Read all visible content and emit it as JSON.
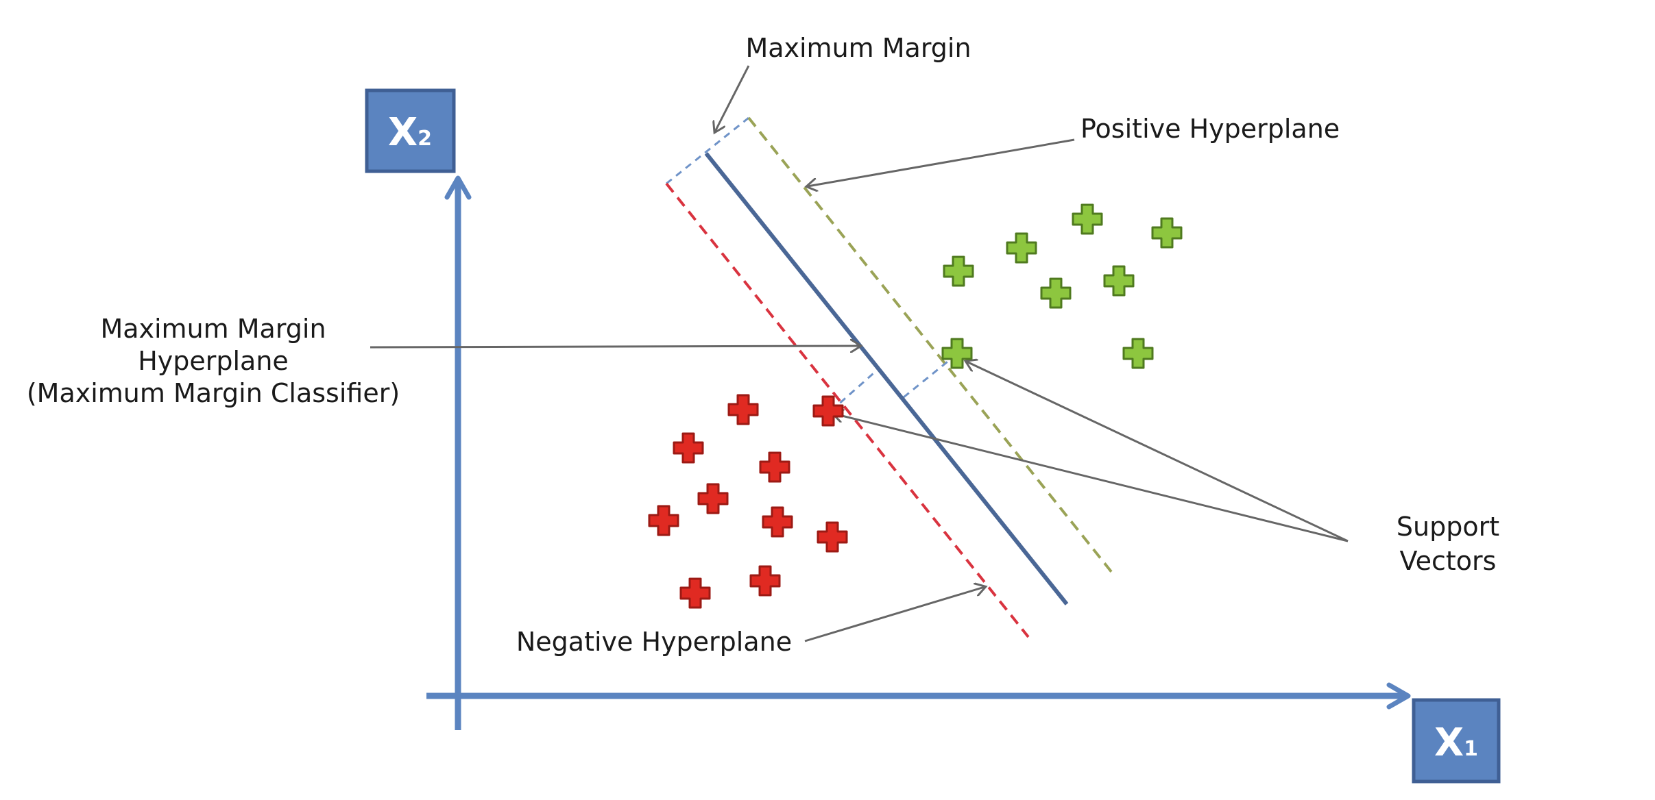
{
  "labels": {
    "maximum_margin": "Maximum Margin",
    "positive_hyperplane": "Positive Hyperplane",
    "mmh_line1": "Maximum Margin",
    "mmh_line2": "Hyperplane",
    "mmh_line3": "(Maximum Margin Classifier)",
    "support_line1": "Support",
    "support_line2": "Vectors",
    "negative_hyperplane": "Negative Hyperplane"
  },
  "axes": {
    "x_symbol": "X",
    "x_subscript": "1",
    "y_symbol": "X",
    "y_subscript": "2"
  },
  "colors": {
    "axis": "#5b84c0",
    "axis_box_fill": "#5b84c0",
    "axis_box_stroke": "#3f5f94",
    "hyperplane": "#4a6796",
    "positive_hyperplane": "#9aa356",
    "negative_hyperplane": "#d9333f",
    "margin_dash": "#6f93c8",
    "arrow": "#666666",
    "positive_point": "#8dc63f",
    "positive_point_stroke": "#4f7a1f",
    "negative_point": "#e02a22",
    "negative_point_stroke": "#9c1a14"
  },
  "points": {
    "positive_symbol": "plus",
    "negative_symbol": "plus"
  }
}
